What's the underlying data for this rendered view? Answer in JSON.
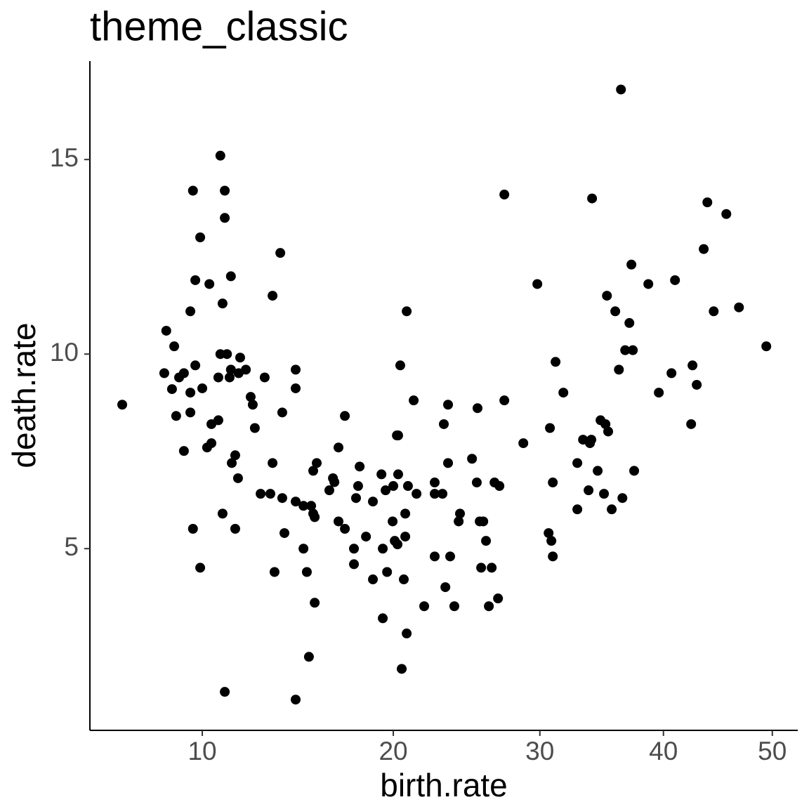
{
  "chart_data": {
    "type": "scatter",
    "title": "theme_classic",
    "x_label": "birth.rate",
    "y_label": "death.rate",
    "x_scale": "sqrt",
    "color": "#000000",
    "grid": false,
    "xlim": [
      5.72,
      52.5
    ],
    "ylim": [
      0.33,
      17.53
    ],
    "xticks": [
      10,
      20,
      30,
      40,
      50
    ],
    "yticks": [
      5,
      10,
      15
    ],
    "x": [
      6.83,
      8.5,
      8.82,
      8.42,
      8.73,
      9.02,
      9.22,
      8.9,
      9.49,
      9.49,
      9.7,
      9.22,
      10.0,
      9.6,
      9.91,
      9.7,
      9.49,
      9.6,
      9.91,
      10.31,
      10.8,
      11.0,
      11.0,
      11.28,
      10.9,
      10.8,
      11.1,
      10.71,
      11.28,
      11.22,
      11.64,
      11.71,
      11.98,
      10.71,
      10.4,
      10.4,
      10.21,
      11.48,
      11.32,
      11.61,
      10.9,
      11.0,
      11.48,
      12.21,
      12.31,
      12.41,
      12.89,
      12.69,
      13.17,
      13.28,
      13.67,
      13.28,
      13.77,
      13.77,
      13.88,
      13.38,
      14.46,
      14.46,
      14.46,
      14.87,
      15.28,
      15.39,
      15.47,
      15.39,
      15.58,
      14.87,
      15.05,
      15.47,
      15.16,
      14.46,
      16.27,
      16.47,
      16.55,
      16.78,
      17.14,
      16.78,
      17.14,
      17.66,
      17.66,
      17.78,
      17.9,
      17.99,
      18.36,
      18.77,
      18.77,
      19.28,
      19.36,
      19.36,
      19.53,
      19.62,
      19.96,
      20.0,
      20.09,
      20.26,
      20.22,
      20.43,
      20.3,
      20.3,
      20.52,
      20.65,
      20.74,
      20.74,
      20.83,
      20.83,
      20.91,
      21.27,
      21.45,
      21.94,
      22.62,
      22.62,
      22.62,
      23.13,
      23.22,
      23.32,
      23.5,
      23.5,
      23.64,
      23.92,
      24.21,
      24.3,
      25.12,
      25.45,
      25.5,
      25.65,
      25.9,
      25.75,
      26.09,
      26.29,
      26.49,
      26.69,
      26.94,
      27.04,
      27.39,
      27.39,
      28.77,
      29.81,
      30.66,
      30.87,
      30.98,
      30.76,
      30.98,
      31.19,
      31.79,
      32.88,
      32.88,
      33.33,
      33.77,
      33.88,
      33.99,
      34.05,
      34.5,
      34.73,
      35.01,
      35.13,
      35.25,
      35.35,
      35.64,
      35.93,
      36.23,
      36.4,
      36.52,
      36.75,
      37.1,
      37.27,
      37.39,
      37.5,
      38.7,
      39.6,
      40.7,
      41.01,
      42.44,
      42.56,
      42.94,
      43.57,
      43.9,
      44.48,
      45.64,
      46.82,
      49.42
    ],
    "values": [
      8.7,
      10.6,
      10.2,
      9.51,
      9.1,
      9.4,
      9.51,
      8.41,
      9.01,
      8.5,
      9.71,
      7.51,
      9.12,
      14.2,
      13.0,
      11.9,
      11.1,
      5.51,
      4.51,
      11.8,
      15.1,
      14.2,
      13.5,
      12.0,
      11.3,
      10.0,
      10.0,
      9.4,
      9.6,
      9.4,
      9.51,
      9.91,
      9.6,
      8.3,
      8.2,
      7.71,
      7.6,
      7.4,
      7.2,
      6.81,
      5.9,
      1.32,
      5.51,
      8.9,
      8.7,
      8.1,
      9.4,
      6.41,
      6.41,
      11.5,
      12.6,
      7.2,
      8.5,
      6.3,
      5.4,
      4.4,
      9.6,
      9.12,
      6.21,
      6.1,
      6.1,
      5.9,
      5.81,
      7.0,
      7.2,
      5.0,
      4.4,
      3.61,
      2.22,
      1.12,
      6.5,
      6.81,
      6.71,
      7.6,
      8.41,
      5.7,
      5.51,
      5.0,
      4.6,
      6.3,
      6.61,
      7.11,
      5.31,
      4.21,
      6.21,
      6.91,
      5.0,
      3.21,
      6.5,
      4.4,
      5.7,
      6.61,
      5.2,
      5.11,
      7.91,
      9.71,
      7.91,
      6.91,
      1.91,
      4.21,
      5.31,
      5.9,
      2.82,
      11.1,
      6.61,
      8.81,
      6.41,
      3.52,
      6.7,
      6.41,
      4.8,
      6.41,
      8.2,
      4.01,
      8.7,
      7.2,
      4.8,
      3.52,
      5.7,
      5.9,
      7.31,
      6.7,
      8.61,
      5.7,
      5.7,
      4.51,
      5.2,
      3.52,
      4.51,
      6.7,
      3.72,
      6.61,
      8.81,
      14.1,
      7.71,
      11.8,
      5.4,
      5.2,
      4.8,
      8.1,
      6.7,
      9.8,
      9.01,
      7.2,
      6.01,
      7.8,
      6.5,
      7.71,
      7.8,
      14.0,
      7.0,
      8.3,
      6.41,
      8.2,
      11.5,
      8.01,
      6.01,
      11.1,
      9.6,
      16.8,
      6.3,
      10.1,
      10.8,
      12.3,
      10.1,
      7.0,
      11.8,
      9.01,
      9.51,
      11.9,
      8.2,
      9.71,
      9.21,
      12.7,
      13.9,
      11.1,
      13.6,
      11.2,
      10.2
    ]
  }
}
